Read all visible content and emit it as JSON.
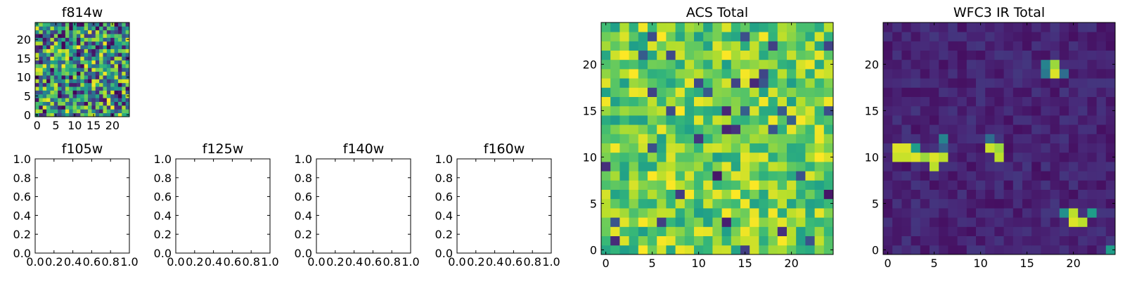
{
  "chart_data": [
    {
      "type": "heatmap",
      "title": "f814w",
      "xlabel": "",
      "ylabel": "",
      "xlim": [
        -0.5,
        24.5
      ],
      "ylim": [
        -0.5,
        24.5
      ],
      "xticks": [
        0,
        5,
        10,
        15,
        20
      ],
      "yticks": [
        0,
        5,
        10,
        15,
        20
      ],
      "grid": false,
      "colormap": "viridis",
      "pattern": "uniform-noise",
      "n": 25,
      "seed": 814
    },
    {
      "type": "heatmap",
      "title": "f105w",
      "xlabel": "",
      "ylabel": "",
      "xlim": [
        0,
        1
      ],
      "ylim": [
        0,
        1
      ],
      "xticks": [
        "0.0",
        "0.2",
        "0.4",
        "0.6",
        "0.8",
        "1.0"
      ],
      "yticks": [
        "0.0",
        "0.2",
        "0.4",
        "0.6",
        "0.8",
        "1.0"
      ],
      "grid": false,
      "empty": true
    },
    {
      "type": "heatmap",
      "title": "f125w",
      "xlabel": "",
      "ylabel": "",
      "xlim": [
        0,
        1
      ],
      "ylim": [
        0,
        1
      ],
      "xticks": [
        "0.0",
        "0.2",
        "0.4",
        "0.6",
        "0.8",
        "1.0"
      ],
      "yticks": [
        "0.0",
        "0.2",
        "0.4",
        "0.6",
        "0.8",
        "1.0"
      ],
      "grid": false,
      "empty": true
    },
    {
      "type": "heatmap",
      "title": "f140w",
      "xlabel": "",
      "ylabel": "",
      "xlim": [
        0,
        1
      ],
      "ylim": [
        0,
        1
      ],
      "xticks": [
        "0.0",
        "0.2",
        "0.4",
        "0.6",
        "0.8",
        "1.0"
      ],
      "yticks": [
        "0.0",
        "0.2",
        "0.4",
        "0.6",
        "0.8",
        "1.0"
      ],
      "grid": false,
      "empty": true
    },
    {
      "type": "heatmap",
      "title": "f160w",
      "xlabel": "",
      "ylabel": "",
      "xlim": [
        0,
        1
      ],
      "ylim": [
        0,
        1
      ],
      "xticks": [
        "0.0",
        "0.2",
        "0.4",
        "0.6",
        "0.8",
        "1.0"
      ],
      "yticks": [
        "0.0",
        "0.2",
        "0.4",
        "0.6",
        "0.8",
        "1.0"
      ],
      "grid": false,
      "empty": true
    },
    {
      "type": "heatmap",
      "title": "ACS Total",
      "xlabel": "",
      "ylabel": "",
      "xlim": [
        -0.5,
        24.5
      ],
      "ylim": [
        -0.5,
        24.5
      ],
      "xticks": [
        0,
        5,
        10,
        15,
        20
      ],
      "yticks": [
        0,
        5,
        10,
        15,
        20
      ],
      "grid": false,
      "colormap": "viridis",
      "pattern": "high-noise",
      "n": 25,
      "seed": 42
    },
    {
      "type": "heatmap",
      "title": "WFC3 IR Total",
      "xlabel": "",
      "ylabel": "",
      "xlim": [
        -0.5,
        24.5
      ],
      "ylim": [
        -0.5,
        24.5
      ],
      "xticks": [
        0,
        5,
        10,
        15,
        20
      ],
      "yticks": [
        0,
        5,
        10,
        15,
        20
      ],
      "grid": false,
      "colormap": "viridis",
      "pattern": "sources",
      "n": 25,
      "seed": 7,
      "sources": [
        {
          "x": 1,
          "y": 11,
          "value": 0.95
        },
        {
          "x": 2,
          "y": 11,
          "value": 0.95
        },
        {
          "x": 1,
          "y": 10,
          "value": 0.92
        },
        {
          "x": 2,
          "y": 10,
          "value": 0.92
        },
        {
          "x": 3,
          "y": 10,
          "value": 0.95
        },
        {
          "x": 3,
          "y": 11,
          "value": 0.55
        },
        {
          "x": 4,
          "y": 10,
          "value": 0.85
        },
        {
          "x": 5,
          "y": 10,
          "value": 0.95
        },
        {
          "x": 5,
          "y": 9,
          "value": 0.9
        },
        {
          "x": 6,
          "y": 10,
          "value": 0.9
        },
        {
          "x": 6,
          "y": 12,
          "value": 0.45
        },
        {
          "x": 6,
          "y": 11,
          "value": 0.3
        },
        {
          "x": 11,
          "y": 11,
          "value": 0.92
        },
        {
          "x": 12,
          "y": 11,
          "value": 0.85
        },
        {
          "x": 12,
          "y": 10,
          "value": 0.9
        },
        {
          "x": 11,
          "y": 12,
          "value": 0.35
        },
        {
          "x": 18,
          "y": 19,
          "value": 0.95
        },
        {
          "x": 18,
          "y": 20,
          "value": 0.85
        },
        {
          "x": 17,
          "y": 19,
          "value": 0.4
        },
        {
          "x": 17,
          "y": 20,
          "value": 0.45
        },
        {
          "x": 19,
          "y": 19,
          "value": 0.35
        },
        {
          "x": 20,
          "y": 3,
          "value": 0.95
        },
        {
          "x": 21,
          "y": 3,
          "value": 0.9
        },
        {
          "x": 20,
          "y": 4,
          "value": 0.9
        },
        {
          "x": 19,
          "y": 4,
          "value": 0.5
        },
        {
          "x": 22,
          "y": 4,
          "value": 0.55
        },
        {
          "x": 24,
          "y": 0,
          "value": 0.55
        }
      ]
    }
  ]
}
